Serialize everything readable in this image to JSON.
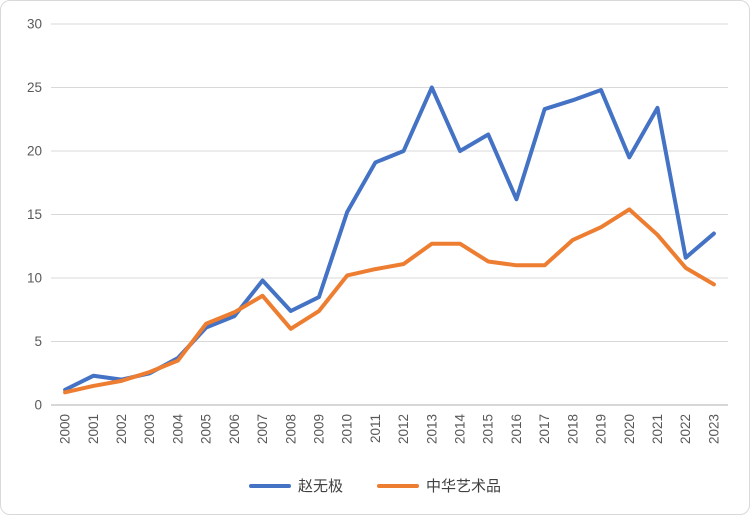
{
  "chart_data": {
    "type": "line",
    "title": "",
    "xlabel": "",
    "ylabel": "",
    "categories": [
      "2000",
      "2001",
      "2002",
      "2003",
      "2004",
      "2005",
      "2006",
      "2007",
      "2008",
      "2009",
      "2010",
      "2011",
      "2012",
      "2013",
      "2014",
      "2015",
      "2016",
      "2017",
      "2018",
      "2019",
      "2020",
      "2021",
      "2022",
      "2023"
    ],
    "series": [
      {
        "name": "赵无极",
        "color": "#4472C4",
        "values": [
          1.2,
          2.3,
          2.0,
          2.5,
          3.7,
          6.1,
          7.0,
          9.8,
          7.4,
          8.5,
          15.2,
          19.1,
          20.0,
          25.0,
          20.0,
          21.3,
          16.2,
          23.3,
          24.0,
          24.8,
          19.5,
          23.4,
          11.6,
          13.5
        ]
      },
      {
        "name": "中华艺术品",
        "color": "#ED7D31",
        "values": [
          1.0,
          1.5,
          1.9,
          2.6,
          3.5,
          6.4,
          7.3,
          8.6,
          6.0,
          7.4,
          10.2,
          10.7,
          11.1,
          12.7,
          12.7,
          11.3,
          11.0,
          11.0,
          13.0,
          14.0,
          15.4,
          13.4,
          10.8,
          9.5
        ]
      }
    ],
    "ylim": [
      0,
      30
    ],
    "yticks": [
      0,
      5,
      10,
      15,
      20,
      25,
      30
    ],
    "grid": true,
    "legend_position": "bottom"
  },
  "colors": {
    "gridline": "#d9d9d9",
    "axis_line": "#bfbfbf",
    "tick_text": "#595959",
    "legend_text": "#404040",
    "background": "#ffffff",
    "border": "#d9d9d9"
  }
}
